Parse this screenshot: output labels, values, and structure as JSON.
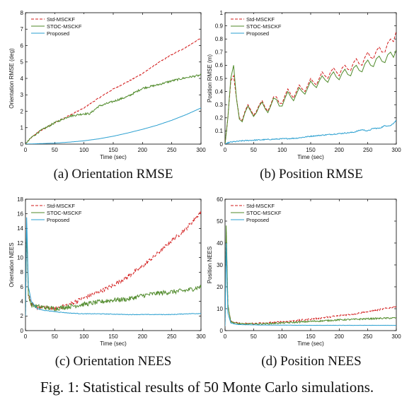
{
  "figure_caption": "Fig. 1: Statistical results of 50 Monte Carlo simulations.",
  "colors": {
    "std": "#d21a1a",
    "stoc": "#4f8a2a",
    "proposed": "#2a9fd0",
    "axis": "#000000"
  },
  "chart_data": [
    {
      "id": "a",
      "type": "line",
      "caption": "(a) Orientation RMSE",
      "xlabel": "Time (sec)",
      "ylabel": "Orientation RMSE (deg)",
      "xlim": [
        0,
        300
      ],
      "ylim": [
        0,
        8
      ],
      "xticks": [
        0,
        50,
        100,
        150,
        200,
        250,
        300
      ],
      "yticks": [
        0,
        1,
        2,
        3,
        4,
        5,
        6,
        7,
        8
      ],
      "xtick_labels": [
        "0",
        "50",
        "100",
        "150",
        "200",
        "250",
        "300"
      ],
      "ytick_labels": [
        "0",
        "1",
        "2",
        "3",
        "4",
        "5",
        "6",
        "7",
        "8"
      ],
      "legend": "top-left",
      "series": [
        {
          "name": "Std-MSCKF",
          "style": "dashed",
          "noise": 0.03,
          "x": [
            0,
            10,
            25,
            50,
            75,
            100,
            125,
            150,
            175,
            200,
            225,
            250,
            275,
            300
          ],
          "y": [
            0,
            0.4,
            0.8,
            1.3,
            1.75,
            2.2,
            2.8,
            3.35,
            3.8,
            4.3,
            4.9,
            5.45,
            5.9,
            6.45
          ]
        },
        {
          "name": "STOC-MSCKF",
          "style": "solid",
          "noise": 0.06,
          "x": [
            0,
            10,
            25,
            50,
            75,
            100,
            110,
            125,
            150,
            175,
            200,
            225,
            250,
            275,
            300
          ],
          "y": [
            0,
            0.4,
            0.8,
            1.3,
            1.7,
            1.85,
            1.85,
            2.3,
            2.6,
            2.9,
            3.4,
            3.6,
            3.85,
            4.05,
            4.2
          ]
        },
        {
          "name": "Proposed",
          "style": "solid",
          "noise": 0.0,
          "x": [
            0,
            25,
            50,
            75,
            100,
            125,
            150,
            175,
            200,
            225,
            250,
            275,
            300
          ],
          "y": [
            0,
            0.03,
            0.06,
            0.12,
            0.2,
            0.32,
            0.48,
            0.68,
            0.9,
            1.15,
            1.45,
            1.8,
            2.2
          ]
        }
      ]
    },
    {
      "id": "b",
      "type": "line",
      "caption": "(b) Position RMSE",
      "xlabel": "Time (sec)",
      "ylabel": "Position RMSE (m)",
      "xlim": [
        0,
        300
      ],
      "ylim": [
        0,
        1
      ],
      "xticks": [
        0,
        50,
        100,
        150,
        200,
        250,
        300
      ],
      "yticks": [
        0,
        0.1,
        0.2,
        0.3,
        0.4,
        0.5,
        0.6,
        0.7,
        0.8,
        0.9,
        1
      ],
      "xtick_labels": [
        "0",
        "50",
        "100",
        "150",
        "200",
        "250",
        "300"
      ],
      "ytick_labels": [
        "0",
        "0.1",
        "0.2",
        "0.3",
        "0.4",
        "0.5",
        "0.6",
        "0.7",
        "0.8",
        "0.9",
        "1"
      ],
      "legend": "top-left",
      "series": [
        {
          "name": "Std-MSCKF",
          "style": "dashed",
          "noise": 0.0,
          "x": [
            0,
            5,
            10,
            15,
            20,
            25,
            30,
            35,
            40,
            45,
            50,
            55,
            60,
            65,
            70,
            75,
            80,
            85,
            90,
            95,
            100,
            105,
            110,
            115,
            120,
            125,
            130,
            135,
            140,
            145,
            150,
            155,
            160,
            165,
            170,
            175,
            180,
            185,
            190,
            195,
            200,
            205,
            210,
            215,
            220,
            225,
            230,
            235,
            240,
            245,
            250,
            255,
            260,
            265,
            270,
            275,
            280,
            285,
            290,
            295,
            300
          ],
          "y": [
            0,
            0.2,
            0.48,
            0.52,
            0.35,
            0.2,
            0.18,
            0.25,
            0.3,
            0.26,
            0.22,
            0.25,
            0.3,
            0.33,
            0.28,
            0.25,
            0.3,
            0.36,
            0.36,
            0.31,
            0.31,
            0.37,
            0.42,
            0.38,
            0.35,
            0.4,
            0.45,
            0.42,
            0.4,
            0.45,
            0.5,
            0.47,
            0.45,
            0.5,
            0.55,
            0.52,
            0.5,
            0.55,
            0.58,
            0.55,
            0.52,
            0.58,
            0.6,
            0.57,
            0.56,
            0.62,
            0.65,
            0.61,
            0.6,
            0.66,
            0.7,
            0.66,
            0.65,
            0.71,
            0.74,
            0.7,
            0.7,
            0.77,
            0.8,
            0.78,
            0.86
          ]
        },
        {
          "name": "STOC-MSCKF",
          "style": "solid",
          "noise": 0.0,
          "x": [
            0,
            5,
            10,
            15,
            20,
            25,
            30,
            35,
            40,
            45,
            50,
            55,
            60,
            65,
            70,
            75,
            80,
            85,
            90,
            95,
            100,
            105,
            110,
            115,
            120,
            125,
            130,
            135,
            140,
            145,
            150,
            155,
            160,
            165,
            170,
            175,
            180,
            185,
            190,
            195,
            200,
            205,
            210,
            215,
            220,
            225,
            230,
            235,
            240,
            245,
            250,
            255,
            260,
            265,
            270,
            275,
            280,
            285,
            290,
            295,
            300
          ],
          "y": [
            0,
            0.2,
            0.5,
            0.6,
            0.35,
            0.19,
            0.17,
            0.24,
            0.29,
            0.25,
            0.21,
            0.24,
            0.29,
            0.32,
            0.27,
            0.24,
            0.29,
            0.35,
            0.34,
            0.29,
            0.29,
            0.35,
            0.4,
            0.36,
            0.33,
            0.38,
            0.43,
            0.4,
            0.38,
            0.43,
            0.48,
            0.45,
            0.43,
            0.48,
            0.52,
            0.49,
            0.47,
            0.52,
            0.55,
            0.51,
            0.49,
            0.54,
            0.57,
            0.53,
            0.52,
            0.58,
            0.6,
            0.56,
            0.55,
            0.61,
            0.64,
            0.6,
            0.59,
            0.65,
            0.67,
            0.63,
            0.62,
            0.68,
            0.7,
            0.66,
            0.72
          ]
        },
        {
          "name": "Proposed",
          "style": "solid",
          "noise": 0.004,
          "x": [
            0,
            5,
            10,
            20,
            30,
            50,
            75,
            100,
            125,
            150,
            175,
            200,
            225,
            240,
            250,
            260,
            270,
            280,
            290,
            300
          ],
          "y": [
            0,
            0.01,
            0.015,
            0.02,
            0.025,
            0.03,
            0.035,
            0.04,
            0.045,
            0.06,
            0.07,
            0.08,
            0.09,
            0.11,
            0.1,
            0.12,
            0.12,
            0.14,
            0.14,
            0.18
          ]
        }
      ]
    },
    {
      "id": "c",
      "type": "line",
      "caption": "(c) Orientation NEES",
      "xlabel": "Time (sec)",
      "ylabel": "Orientation NEES",
      "xlim": [
        0,
        300
      ],
      "ylim": [
        0,
        18
      ],
      "xticks": [
        0,
        50,
        100,
        150,
        200,
        250,
        300
      ],
      "yticks": [
        0,
        2,
        4,
        6,
        8,
        10,
        12,
        14,
        16,
        18
      ],
      "xtick_labels": [
        "0",
        "50",
        "100",
        "150",
        "200",
        "250",
        "300"
      ],
      "ytick_labels": [
        "0",
        "2",
        "4",
        "6",
        "8",
        "10",
        "12",
        "14",
        "16",
        "18"
      ],
      "legend": "top-left",
      "series": [
        {
          "name": "Std-MSCKF",
          "style": "dashed",
          "noise": 0.28,
          "x": [
            0,
            2,
            5,
            10,
            20,
            30,
            50,
            75,
            100,
            125,
            150,
            175,
            200,
            225,
            250,
            275,
            300
          ],
          "y": [
            2,
            14,
            5,
            3.5,
            3.2,
            3.2,
            3.0,
            3.6,
            4.5,
            5.3,
            6.2,
            7.4,
            8.8,
            10.5,
            12.3,
            14.0,
            16.3
          ]
        },
        {
          "name": "STOC-MSCKF",
          "style": "solid",
          "noise": 0.32,
          "x": [
            0,
            2,
            5,
            10,
            20,
            30,
            50,
            75,
            100,
            125,
            150,
            175,
            200,
            225,
            250,
            275,
            300
          ],
          "y": [
            2,
            14,
            5,
            3.5,
            3.3,
            3.2,
            3.0,
            3.3,
            3.6,
            3.9,
            4.2,
            4.3,
            4.8,
            5.1,
            5.3,
            5.5,
            6.0
          ]
        },
        {
          "name": "Proposed",
          "style": "solid",
          "noise": 0.04,
          "x": [
            0,
            2,
            5,
            10,
            20,
            30,
            50,
            75,
            100,
            125,
            150,
            175,
            200,
            225,
            250,
            275,
            300
          ],
          "y": [
            2,
            15.5,
            6.0,
            4.0,
            3.0,
            2.8,
            2.6,
            2.4,
            2.3,
            2.3,
            2.25,
            2.2,
            2.2,
            2.2,
            2.2,
            2.3,
            2.35
          ]
        }
      ]
    },
    {
      "id": "d",
      "type": "line",
      "caption": "(d) Position NEES",
      "xlabel": "Time (sec)",
      "ylabel": "Position NEES",
      "xlim": [
        0,
        300
      ],
      "ylim": [
        0,
        60
      ],
      "xticks": [
        0,
        50,
        100,
        150,
        200,
        250,
        300
      ],
      "yticks": [
        0,
        10,
        20,
        30,
        40,
        50,
        60
      ],
      "xtick_labels": [
        "0",
        "50",
        "100",
        "150",
        "200",
        "250",
        "300"
      ],
      "ytick_labels": [
        "0",
        "10",
        "20",
        "30",
        "40",
        "50",
        "60"
      ],
      "legend": "top-left",
      "series": [
        {
          "name": "Std-MSCKF",
          "style": "dashed",
          "noise": 0.35,
          "x": [
            0,
            2,
            5,
            10,
            20,
            30,
            50,
            75,
            100,
            125,
            150,
            175,
            200,
            225,
            250,
            275,
            300
          ],
          "y": [
            2,
            45,
            12,
            4,
            3.5,
            3.2,
            3.3,
            3.6,
            4.0,
            4.6,
            5.2,
            6.0,
            6.8,
            7.6,
            8.6,
            9.8,
            11
          ]
        },
        {
          "name": "STOC-MSCKF",
          "style": "solid",
          "noise": 0.35,
          "x": [
            0,
            2,
            5,
            10,
            20,
            30,
            50,
            75,
            100,
            125,
            150,
            175,
            200,
            225,
            250,
            275,
            300
          ],
          "y": [
            2,
            48,
            12,
            4,
            3.3,
            3.0,
            3.0,
            3.2,
            3.5,
            3.8,
            4.2,
            4.5,
            4.9,
            5.1,
            5.4,
            5.6,
            5.8
          ]
        },
        {
          "name": "Proposed",
          "style": "solid",
          "noise": 0.05,
          "x": [
            0,
            2,
            5,
            10,
            20,
            30,
            50,
            75,
            100,
            125,
            150,
            175,
            200,
            225,
            250,
            275,
            300
          ],
          "y": [
            2,
            40,
            8,
            3.5,
            2.8,
            2.7,
            2.6,
            2.5,
            2.5,
            2.45,
            2.4,
            2.4,
            2.4,
            2.4,
            2.4,
            2.4,
            2.4
          ]
        }
      ]
    }
  ]
}
